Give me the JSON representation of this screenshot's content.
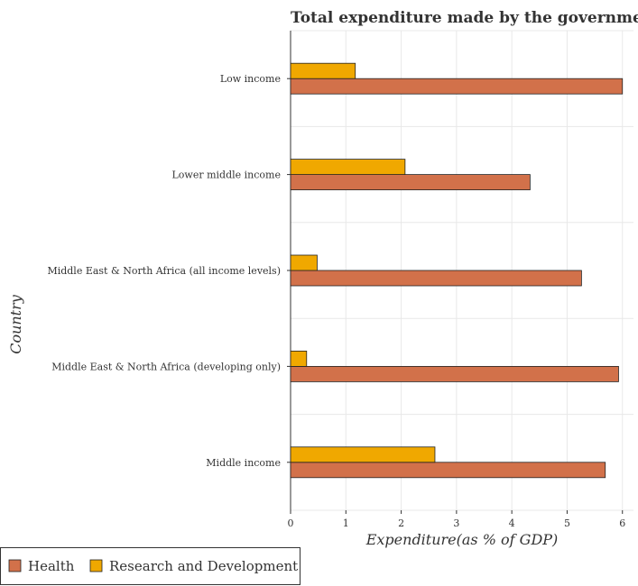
{
  "chart_data": {
    "type": "bar",
    "orientation": "horizontal",
    "title": "Total expenditure made by the government on",
    "xlabel": "Expenditure(as % of GDP)",
    "ylabel": "Country",
    "xlim": [
      0,
      6.2
    ],
    "xticks": [
      0,
      1,
      2,
      3,
      4,
      5,
      6
    ],
    "grid": true,
    "legend_position": "bottom-left",
    "categories": [
      "Low income",
      "Lower middle income",
      "Middle East & North Africa (all income levels)",
      "Middle East & North Africa (developing only)",
      "Middle income"
    ],
    "series": [
      {
        "name": "Health",
        "color": "#d2714a",
        "values": [
          6.0,
          4.33,
          5.26,
          5.93,
          5.69
        ]
      },
      {
        "name": "Research and Development",
        "color": "#f0a800",
        "values": [
          1.17,
          2.07,
          0.48,
          0.29,
          2.61
        ]
      }
    ]
  }
}
